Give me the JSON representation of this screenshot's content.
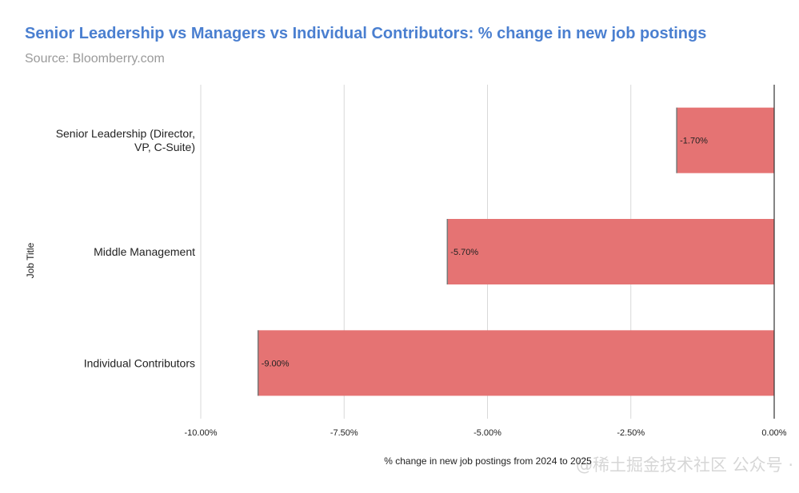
{
  "title": "Senior Leadership vs Managers vs Individual Contributors: % change in new job postings",
  "subtitle": "Source: Bloomberry.com",
  "watermark": "@稀土掘金技术社区  公众号 · 新智元",
  "colors": {
    "bar": "#e57373",
    "title": "#4a7fd0",
    "grid": "#d9d9d9",
    "axis": "#333333"
  },
  "chart_data": {
    "type": "bar",
    "orientation": "horizontal",
    "ylabel": "Job Title",
    "xlabel": "% change in new job postings from 2024 to 2025",
    "categories": [
      [
        "Senior Leadership (Director,",
        "VP, C-Suite)"
      ],
      [
        "Middle Management"
      ],
      [
        "Individual Contributors"
      ]
    ],
    "values": [
      -1.7,
      -5.7,
      -9.0
    ],
    "data_labels": [
      "-1.70%",
      "-5.70%",
      "-9.00%"
    ],
    "xlim": [
      -10,
      0
    ],
    "xticks": [
      -10,
      -7.5,
      -5,
      -2.5,
      0
    ],
    "xtick_labels": [
      "-10.00%",
      "-7.50%",
      "-5.00%",
      "-2.50%",
      "0.00%"
    ],
    "grid": true,
    "legend": "none"
  }
}
